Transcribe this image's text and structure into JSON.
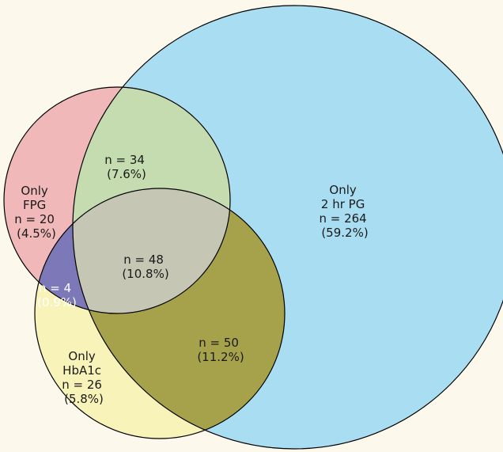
{
  "colors": {
    "background": "#fdf8ec",
    "pg_only": "#a9def2",
    "fpg_only": "#f0b8b8",
    "hba1c_only": "#f8f3b8",
    "fpg_pg": "#c4dcb0",
    "pg_hba1c": "#a6a24c",
    "fpg_hba1c": "#7d78b8",
    "all_three": "#c6c6b4"
  },
  "regions": {
    "pg_only": {
      "lines": [
        "Only",
        "2 hr PG",
        "n = 264",
        "(59.2%)"
      ],
      "n": 264,
      "percent": 59.2
    },
    "fpg_only": {
      "lines": [
        "Only",
        "FPG",
        "n = 20",
        "(4.5%)"
      ],
      "n": 20,
      "percent": 4.5
    },
    "hba1c_only": {
      "lines": [
        "Only",
        "HbA1c",
        "n = 26",
        "(5.8%)"
      ],
      "n": 26,
      "percent": 5.8
    },
    "fpg_pg": {
      "lines": [
        "n = 34",
        "(7.6%)"
      ],
      "n": 34,
      "percent": 7.6
    },
    "pg_hba1c": {
      "lines": [
        "n = 50",
        "(11.2%)"
      ],
      "n": 50,
      "percent": 11.2
    },
    "fpg_hba1c": {
      "lines": [
        "n = 4",
        "(0.9%)"
      ],
      "n": 4,
      "percent": 0.9
    },
    "all_three": {
      "lines": [
        "n = 48",
        "(10.8%)"
      ],
      "n": 48,
      "percent": 10.8
    }
  }
}
